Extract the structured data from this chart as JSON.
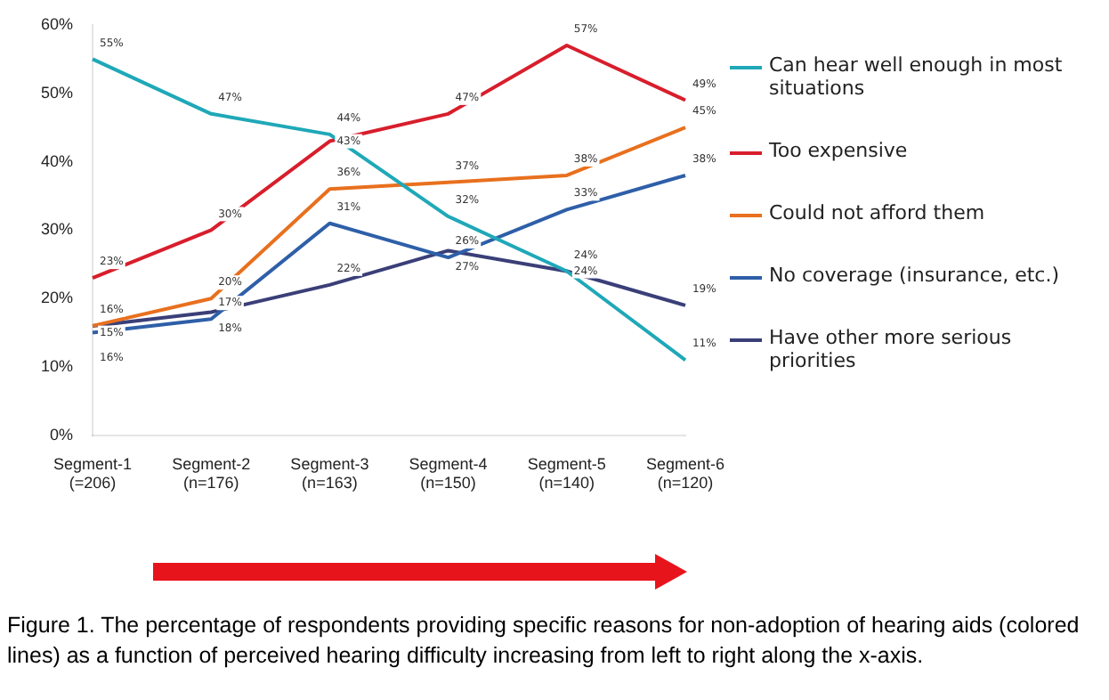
{
  "chart_data": {
    "type": "line",
    "categories": [
      "Segment-1\n(=206)",
      "Segment-2\n(n=176)",
      "Segment-3\n(n=163)",
      "Segment-4\n(n=150)",
      "Segment-5\n(n=140)",
      "Segment-6\n(n=120)"
    ],
    "series": [
      {
        "name": "Can hear well enough in most situations",
        "color": "#1fa8b8",
        "values": [
          55,
          47,
          44,
          32,
          24,
          11
        ],
        "value_labels": [
          "55%",
          "47%",
          "44%",
          "32%",
          "24%",
          "11%"
        ]
      },
      {
        "name": "Too expensive",
        "color": "#d81e2c",
        "values": [
          23,
          30,
          43,
          47,
          57,
          49
        ],
        "value_labels": [
          "23%",
          "30%",
          "43%",
          "47%",
          "57%",
          "49%"
        ]
      },
      {
        "name": "Could not afford them",
        "color": "#e8701e",
        "values": [
          16,
          20,
          36,
          37,
          38,
          45
        ],
        "value_labels": [
          "16%",
          "20%",
          "36%",
          "37%",
          "38%",
          "45%"
        ]
      },
      {
        "name": "No coverage (insurance, etc.)",
        "color": "#2e5fa8",
        "values": [
          15,
          17,
          31,
          26,
          33,
          38
        ],
        "value_labels": [
          "15%",
          "17%",
          "31%",
          "26%",
          "33%",
          "38%"
        ]
      },
      {
        "name": "Have other more serious priorities",
        "color": "#3a3f78",
        "values": [
          16,
          18,
          22,
          27,
          24,
          19
        ],
        "value_labels": [
          "16%",
          "18%",
          "22%",
          "27%",
          "24%",
          "19%"
        ]
      }
    ],
    "ylim": [
      0,
      60
    ],
    "yticks": [
      {
        "value": 0,
        "label": "0%"
      },
      {
        "value": 10,
        "label": "10%"
      },
      {
        "value": 20,
        "label": "20%"
      },
      {
        "value": 30,
        "label": "30%"
      },
      {
        "value": 40,
        "label": "40%"
      },
      {
        "value": 50,
        "label": "50%"
      },
      {
        "value": 60,
        "label": "60%"
      }
    ],
    "grid": false,
    "legend": "right",
    "marker": "none",
    "annotations": [
      "Figure 1. The percentage of respondents providing specific reasons for non-adoption of hearing aids (colored lines) as a function of perceived hearing difficulty increasing from left to right along the x-axis."
    ]
  }
}
